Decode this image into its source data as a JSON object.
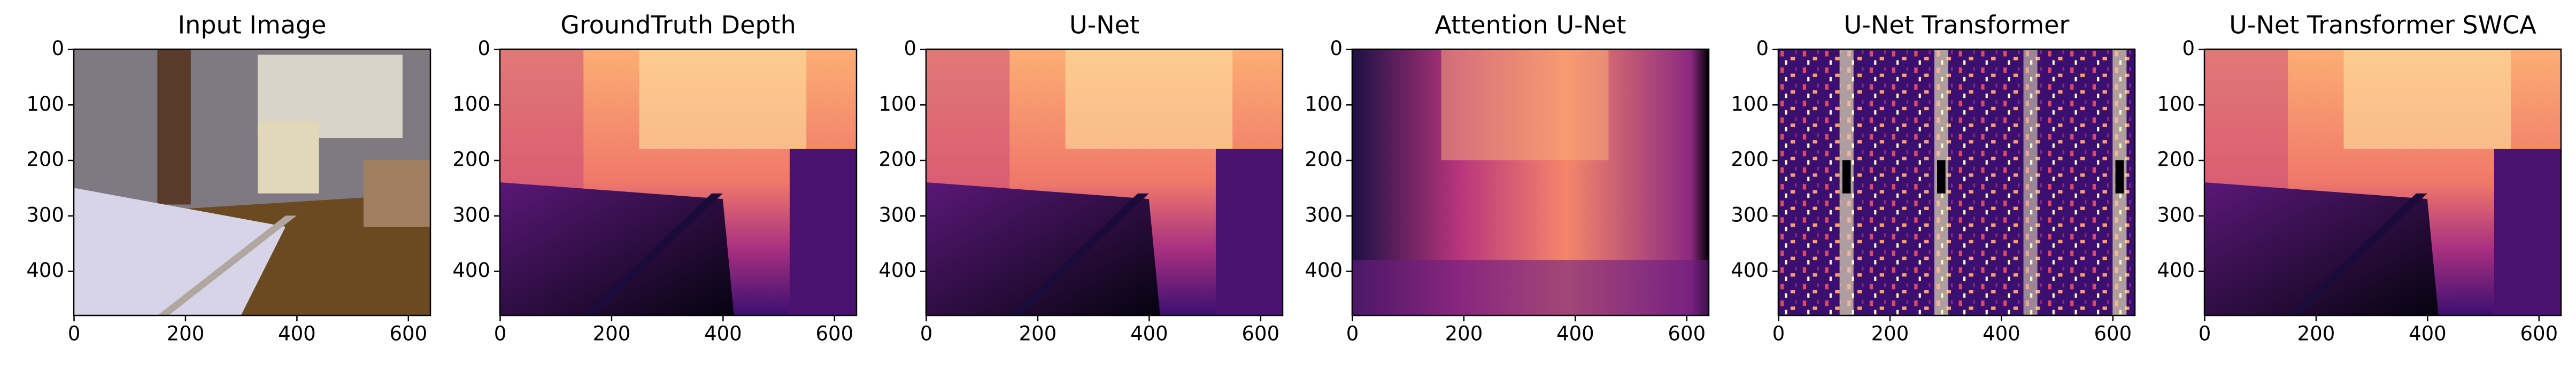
{
  "chart_data": [
    {
      "type": "image",
      "title": "Input Image",
      "xlim": [
        -0.5,
        639.5
      ],
      "ylim": [
        479.5,
        -0.5
      ],
      "xticks": [
        0,
        200,
        400,
        600
      ],
      "yticks": [
        0,
        100,
        200,
        300,
        400
      ]
    },
    {
      "type": "image",
      "title": "GroundTruth Depth",
      "xlim": [
        -0.5,
        639.5
      ],
      "ylim": [
        479.5,
        -0.5
      ],
      "xticks": [
        0,
        200,
        400,
        600
      ],
      "yticks": [
        0,
        100,
        200,
        300,
        400
      ]
    },
    {
      "type": "image",
      "title": "U-Net",
      "xlim": [
        -0.5,
        639.5
      ],
      "ylim": [
        479.5,
        -0.5
      ],
      "xticks": [
        0,
        200,
        400,
        600
      ],
      "yticks": [
        0,
        100,
        200,
        300,
        400
      ]
    },
    {
      "type": "image",
      "title": "Attention U-Net",
      "xlim": [
        -0.5,
        639.5
      ],
      "ylim": [
        479.5,
        -0.5
      ],
      "xticks": [
        0,
        200,
        400,
        600
      ],
      "yticks": [
        0,
        100,
        200,
        300,
        400
      ]
    },
    {
      "type": "image",
      "title": "U-Net Transformer",
      "xlim": [
        -0.5,
        639.5
      ],
      "ylim": [
        479.5,
        -0.5
      ],
      "xticks": [
        0,
        200,
        400,
        600
      ],
      "yticks": [
        0,
        100,
        200,
        300,
        400
      ]
    },
    {
      "type": "image",
      "title": "U-Net Transformer SWCA",
      "xlim": [
        -0.5,
        639.5
      ],
      "ylim": [
        479.5,
        -0.5
      ],
      "xticks": [
        0,
        200,
        400,
        600
      ],
      "yticks": [
        0,
        100,
        200,
        300,
        400
      ]
    }
  ]
}
